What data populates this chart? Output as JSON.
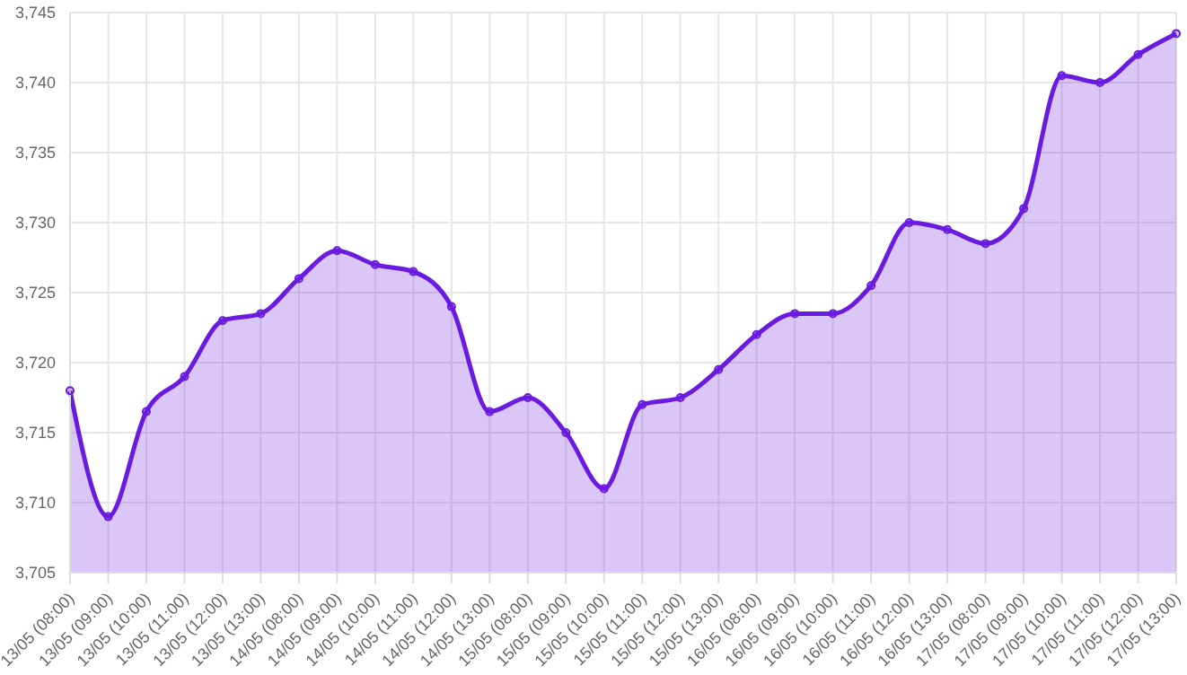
{
  "chart_data": {
    "type": "area",
    "categories": [
      "13/05 (08:00)",
      "13/05 (09:00)",
      "13/05 (10:00)",
      "13/05 (11:00)",
      "13/05 (12:00)",
      "13/05 (13:00)",
      "14/05 (08:00)",
      "14/05 (09:00)",
      "14/05 (10:00)",
      "14/05 (11:00)",
      "14/05 (12:00)",
      "14/05 (13:00)",
      "15/05 (08:00)",
      "15/05 (09:00)",
      "15/05 (10:00)",
      "15/05 (11:00)",
      "15/05 (12:00)",
      "15/05 (13:00)",
      "16/05 (08:00)",
      "16/05 (09:00)",
      "16/05 (10:00)",
      "16/05 (11:00)",
      "16/05 (12:00)",
      "16/05 (13:00)",
      "17/05 (08:00)",
      "17/05 (09:00)",
      "17/05 (10:00)",
      "17/05 (11:00)",
      "17/05 (12:00)",
      "17/05 (13:00)"
    ],
    "series": [
      {
        "color": "#6a1be0",
        "values": [
          3718,
          3709,
          3716.5,
          3719,
          3723,
          3723.5,
          3726,
          3728,
          3727,
          3726.5,
          3724,
          3716.5,
          3717.5,
          3715,
          3711,
          3717,
          3717.5,
          3719.5,
          3722,
          3723.5,
          3723.5,
          3725.5,
          3730,
          3729.5,
          3728.5,
          3731,
          3740.5,
          3740,
          3742,
          3743.5
        ]
      }
    ],
    "ylim": [
      3705,
      3745
    ],
    "yticks": [
      {
        "value": 3705,
        "label": "3,705"
      },
      {
        "value": 3710,
        "label": "3,710"
      },
      {
        "value": 3715,
        "label": "3,715"
      },
      {
        "value": 3720,
        "label": "3,720"
      },
      {
        "value": 3725,
        "label": "3,725"
      },
      {
        "value": 3730,
        "label": "3,730"
      },
      {
        "value": 3735,
        "label": "3,735"
      },
      {
        "value": 3740,
        "label": "3,740"
      },
      {
        "value": 3745,
        "label": "3,745"
      }
    ],
    "grid": true,
    "marker": "circle",
    "line_style": "solid"
  }
}
